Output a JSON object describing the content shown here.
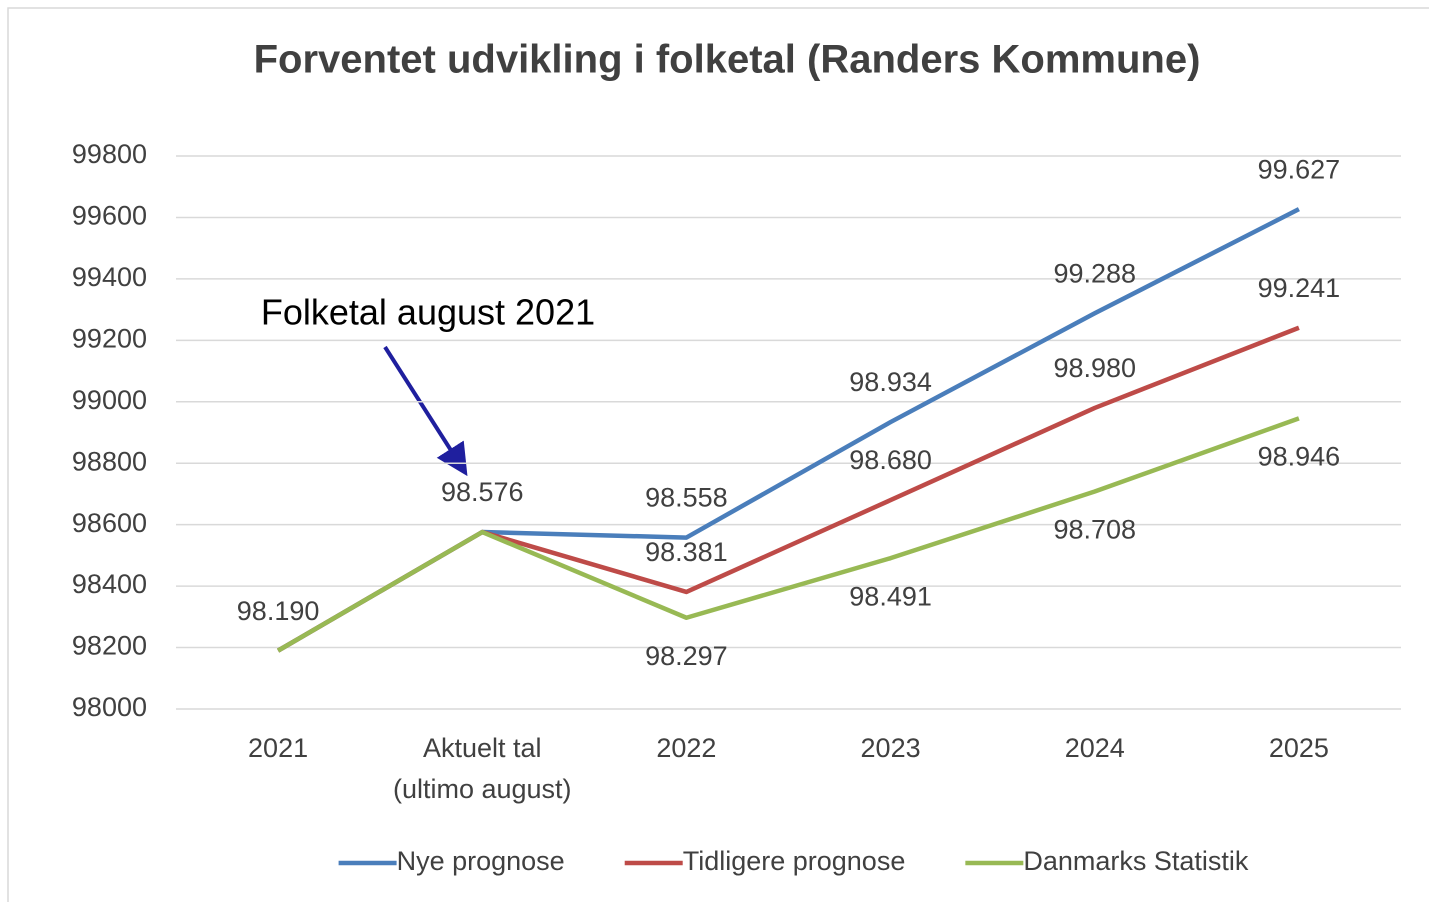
{
  "chart_data": {
    "type": "line",
    "title": "Forventet udvikling i folketal (Randers Kommune)",
    "categories": [
      "2021",
      "Aktuelt tal (ultimo august)",
      "2022",
      "2023",
      "2024",
      "2025"
    ],
    "series": [
      {
        "name": "Nye prognose",
        "color": "#4a7ebb",
        "values": [
          98190,
          98576,
          98558,
          98934,
          99288,
          99627
        ],
        "value_labels": [
          "98.190",
          "98.576",
          "98.558",
          "98.934",
          "99.288",
          "99.627"
        ]
      },
      {
        "name": "Tidligere prognose",
        "color": "#be4b48",
        "values": [
          98190,
          98576,
          98381,
          98680,
          98980,
          99241
        ],
        "value_labels": [
          null,
          null,
          "98.381",
          "98.680",
          "98.980",
          "99.241"
        ]
      },
      {
        "name": "Danmarks Statistik",
        "color": "#98b954",
        "values": [
          98190,
          98576,
          98297,
          98491,
          98708,
          98946
        ],
        "value_labels": [
          null,
          null,
          "98.297",
          "98.491",
          "98.708",
          "98.946"
        ]
      }
    ],
    "ylim": [
      98000,
      99800
    ],
    "yticks": [
      98000,
      98200,
      98400,
      98600,
      98800,
      99000,
      99200,
      99400,
      99600,
      99800
    ],
    "grid": true,
    "legend": "bottom",
    "annotation": "Folketal august 2021"
  }
}
